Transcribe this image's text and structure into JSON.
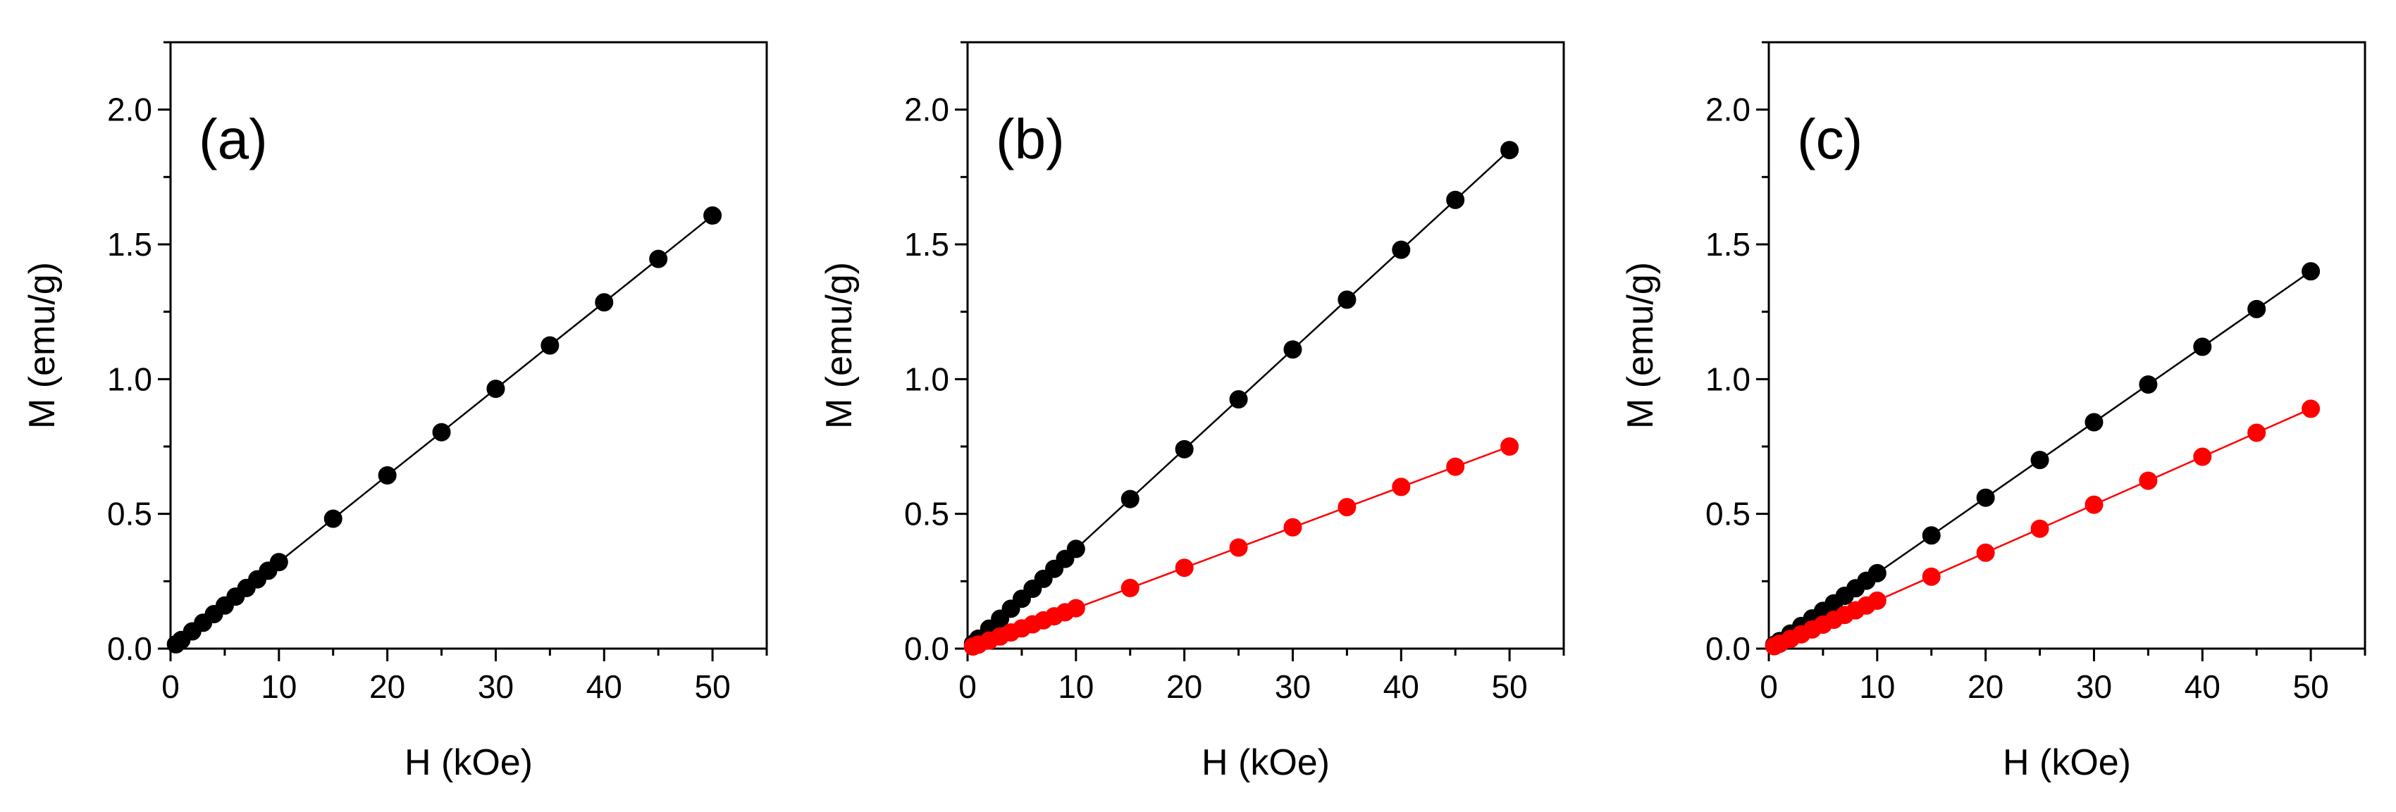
{
  "chart_data": [
    {
      "type": "scatter",
      "label": "(a)",
      "xlabel": "H (kOe)",
      "ylabel": "M (emu/g)",
      "xlim": [
        0,
        55
      ],
      "ylim": [
        0,
        2.25
      ],
      "xticks": [
        "0",
        "10",
        "20",
        "30",
        "40",
        "50"
      ],
      "yticks": [
        "0.0",
        "0.5",
        "1.0",
        "1.5",
        "2.0"
      ],
      "series": [
        {
          "name": "black",
          "color": "#000000",
          "x": [
            0.5,
            1,
            2,
            3,
            4,
            5,
            6,
            7,
            8,
            9,
            10,
            15,
            20,
            25,
            30,
            35,
            40,
            45,
            50
          ],
          "y": [
            0.016,
            0.032,
            0.064,
            0.096,
            0.128,
            0.16,
            0.193,
            0.225,
            0.257,
            0.289,
            0.321,
            0.482,
            0.643,
            0.803,
            0.964,
            1.125,
            1.285,
            1.446,
            1.607
          ]
        }
      ]
    },
    {
      "type": "scatter",
      "label": "(b)",
      "xlabel": "H (kOe)",
      "ylabel": "M (emu/g)",
      "xlim": [
        0,
        55
      ],
      "ylim": [
        0,
        2.25
      ],
      "xticks": [
        "0",
        "10",
        "20",
        "30",
        "40",
        "50"
      ],
      "yticks": [
        "0.0",
        "0.5",
        "1.0",
        "1.5",
        "2.0"
      ],
      "series": [
        {
          "name": "black",
          "color": "#000000",
          "x": [
            0.5,
            1,
            2,
            3,
            4,
            5,
            6,
            7,
            8,
            9,
            10,
            15,
            20,
            25,
            30,
            35,
            40,
            45,
            50
          ],
          "y": [
            0.018,
            0.037,
            0.074,
            0.111,
            0.148,
            0.185,
            0.222,
            0.259,
            0.296,
            0.333,
            0.37,
            0.555,
            0.74,
            0.925,
            1.11,
            1.295,
            1.48,
            1.665,
            1.85
          ]
        },
        {
          "name": "red",
          "color": "#ff0000",
          "x": [
            0.5,
            1,
            2,
            3,
            4,
            5,
            6,
            7,
            8,
            9,
            10,
            15,
            20,
            25,
            30,
            35,
            40,
            45,
            50
          ],
          "y": [
            0.008,
            0.015,
            0.03,
            0.045,
            0.06,
            0.075,
            0.09,
            0.105,
            0.12,
            0.135,
            0.15,
            0.225,
            0.3,
            0.375,
            0.45,
            0.525,
            0.6,
            0.675,
            0.75
          ]
        }
      ]
    },
    {
      "type": "scatter",
      "label": "(c)",
      "xlabel": "H (kOe)",
      "ylabel": "M (emu/g)",
      "xlim": [
        0,
        55
      ],
      "ylim": [
        0,
        2.25
      ],
      "xticks": [
        "0",
        "10",
        "20",
        "30",
        "40",
        "50"
      ],
      "yticks": [
        "0.0",
        "0.5",
        "1.0",
        "1.5",
        "2.0"
      ],
      "series": [
        {
          "name": "black",
          "color": "#000000",
          "x": [
            0.5,
            1,
            2,
            3,
            4,
            5,
            6,
            7,
            8,
            9,
            10,
            15,
            20,
            25,
            30,
            35,
            40,
            45,
            50
          ],
          "y": [
            0.014,
            0.028,
            0.056,
            0.084,
            0.112,
            0.14,
            0.168,
            0.196,
            0.224,
            0.252,
            0.28,
            0.42,
            0.56,
            0.7,
            0.84,
            0.98,
            1.12,
            1.26,
            1.4
          ]
        },
        {
          "name": "red",
          "color": "#ff0000",
          "x": [
            0.5,
            1,
            2,
            3,
            4,
            5,
            6,
            7,
            8,
            9,
            10,
            15,
            20,
            25,
            30,
            35,
            40,
            45,
            50
          ],
          "y": [
            0.009,
            0.018,
            0.036,
            0.053,
            0.071,
            0.089,
            0.107,
            0.125,
            0.142,
            0.16,
            0.178,
            0.267,
            0.356,
            0.445,
            0.534,
            0.623,
            0.712,
            0.801,
            0.89
          ]
        }
      ]
    }
  ]
}
